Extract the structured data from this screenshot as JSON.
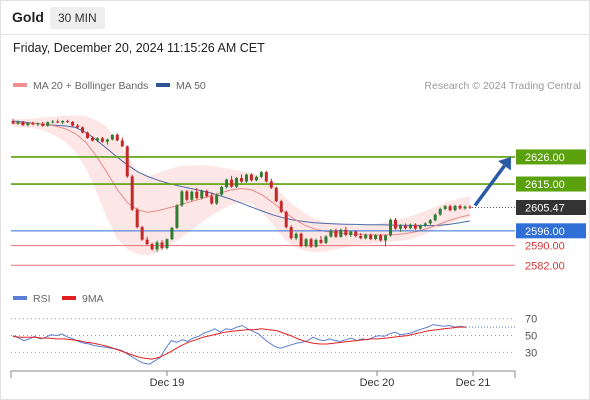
{
  "header": {
    "instrument": "Gold",
    "timeframe": "30 MIN"
  },
  "datetime": "Friday, December 20, 2024 11:15:26 AM CET",
  "legend": {
    "ma20": "MA 20 + Bollinger Bands",
    "ma50": "MA 50",
    "credit": "Research © 2024 Trading Central",
    "rsi": "RSI",
    "ma9": "9MA"
  },
  "colors": {
    "bull": "#2e7d32",
    "bear": "#c62828",
    "band": "#fde2e2",
    "ma20": "#e98a8a",
    "ma50": "#4a6aa8",
    "level_green": "#5aa10d",
    "level_blue": "#2f6fd6",
    "level_red": "#e8727a",
    "arrow": "#2a5aa6",
    "price_tag": "#333333",
    "rsi": "#5b7ed6",
    "rsi_ma": "#e02020"
  },
  "chart_data": [
    {
      "type": "candlestick",
      "ylim": [
        2574,
        2641
      ],
      "x_ticks": [
        "Dec 19",
        "Dec 20",
        "Dec 21"
      ],
      "last_price": "2605.47",
      "levels": [
        {
          "label": "2626.00",
          "value": 2626,
          "kind": "resistance"
        },
        {
          "label": "2615.00",
          "value": 2615,
          "kind": "resistance"
        },
        {
          "label": "2596.00",
          "value": 2596,
          "kind": "pivot"
        },
        {
          "label": "2590.00",
          "value": 2590,
          "kind": "support"
        },
        {
          "label": "2582.00",
          "value": 2582,
          "kind": "support"
        }
      ],
      "candles": [
        [
          2640.5,
          2641.5,
          2639.2,
          2639.6
        ],
        [
          2639.6,
          2640.8,
          2639.0,
          2640.2
        ],
        [
          2640.2,
          2640.6,
          2638.6,
          2638.9
        ],
        [
          2638.9,
          2640.1,
          2638.4,
          2639.7
        ],
        [
          2639.7,
          2640.3,
          2638.9,
          2639.2
        ],
        [
          2639.2,
          2640.0,
          2638.5,
          2639.6
        ],
        [
          2639.6,
          2640.2,
          2638.2,
          2638.6
        ],
        [
          2638.6,
          2640.4,
          2638.2,
          2640.1
        ],
        [
          2640.1,
          2641.0,
          2639.6,
          2640.4
        ],
        [
          2640.4,
          2641.2,
          2639.7,
          2640.0
        ],
        [
          2640.0,
          2640.9,
          2639.3,
          2640.6
        ],
        [
          2640.6,
          2641.1,
          2639.8,
          2640.2
        ],
        [
          2640.2,
          2640.6,
          2638.4,
          2638.7
        ],
        [
          2638.7,
          2639.4,
          2637.6,
          2638.0
        ],
        [
          2638.0,
          2638.4,
          2635.6,
          2635.9
        ],
        [
          2635.9,
          2636.3,
          2633.4,
          2633.7
        ],
        [
          2633.7,
          2634.4,
          2632.3,
          2632.6
        ],
        [
          2632.6,
          2634.0,
          2632.0,
          2633.6
        ],
        [
          2633.6,
          2634.1,
          2631.8,
          2632.2
        ],
        [
          2632.2,
          2633.5,
          2631.0,
          2633.1
        ],
        [
          2633.1,
          2635.2,
          2632.7,
          2635.0
        ],
        [
          2635.0,
          2635.6,
          2632.4,
          2632.7
        ],
        [
          2632.7,
          2633.9,
          2630.0,
          2630.3
        ],
        [
          2630.3,
          2630.7,
          2617.5,
          2618.1
        ],
        [
          2618.1,
          2618.8,
          2604.0,
          2604.6
        ],
        [
          2604.6,
          2605.4,
          2597.0,
          2597.5
        ],
        [
          2597.5,
          2598.0,
          2592.0,
          2592.4
        ],
        [
          2592.4,
          2593.6,
          2590.2,
          2590.6
        ],
        [
          2590.6,
          2591.2,
          2588.0,
          2588.5
        ],
        [
          2588.5,
          2592.0,
          2587.5,
          2591.3
        ],
        [
          2591.3,
          2592.2,
          2588.4,
          2589.0
        ],
        [
          2589.0,
          2592.9,
          2588.4,
          2592.6
        ],
        [
          2592.6,
          2597.6,
          2592.2,
          2597.2
        ],
        [
          2597.2,
          2606.8,
          2596.8,
          2606.3
        ],
        [
          2606.3,
          2612.6,
          2605.7,
          2612.0
        ],
        [
          2612.0,
          2612.6,
          2608.1,
          2608.6
        ],
        [
          2608.6,
          2612.4,
          2608.1,
          2611.9
        ],
        [
          2611.9,
          2613.4,
          2608.8,
          2609.3
        ],
        [
          2609.3,
          2612.8,
          2608.8,
          2612.2
        ],
        [
          2612.2,
          2612.7,
          2609.5,
          2610.0
        ],
        [
          2610.0,
          2611.6,
          2606.6,
          2607.1
        ],
        [
          2607.1,
          2611.2,
          2606.5,
          2610.7
        ],
        [
          2610.7,
          2614.3,
          2610.2,
          2613.8
        ],
        [
          2613.8,
          2617.2,
          2613.2,
          2616.8
        ],
        [
          2616.8,
          2618.3,
          2613.4,
          2613.9
        ],
        [
          2613.9,
          2617.9,
          2613.4,
          2617.4
        ],
        [
          2617.4,
          2618.9,
          2615.5,
          2616.0
        ],
        [
          2616.0,
          2619.3,
          2615.5,
          2618.8
        ],
        [
          2618.8,
          2619.4,
          2616.1,
          2616.5
        ],
        [
          2616.5,
          2618.4,
          2616.1,
          2617.9
        ],
        [
          2617.9,
          2620.3,
          2617.4,
          2619.8
        ],
        [
          2619.8,
          2620.4,
          2615.6,
          2616.1
        ],
        [
          2616.1,
          2617.2,
          2613.0,
          2613.5
        ],
        [
          2613.5,
          2614.0,
          2607.6,
          2608.0
        ],
        [
          2608.0,
          2608.6,
          2603.2,
          2603.7
        ],
        [
          2603.7,
          2604.2,
          2597.0,
          2597.5
        ],
        [
          2597.5,
          2598.2,
          2592.4,
          2593.0
        ],
        [
          2593.0,
          2595.4,
          2592.2,
          2594.8
        ],
        [
          2594.8,
          2595.3,
          2589.3,
          2589.8
        ],
        [
          2589.8,
          2593.1,
          2589.3,
          2592.6
        ],
        [
          2592.6,
          2593.2,
          2589.1,
          2589.6
        ],
        [
          2589.6,
          2592.8,
          2589.1,
          2592.3
        ],
        [
          2592.3,
          2593.9,
          2590.6,
          2591.1
        ],
        [
          2591.1,
          2594.2,
          2590.6,
          2593.7
        ],
        [
          2593.7,
          2596.7,
          2593.2,
          2596.2
        ],
        [
          2596.2,
          2596.8,
          2593.1,
          2593.6
        ],
        [
          2593.6,
          2596.9,
          2593.1,
          2596.4
        ],
        [
          2596.4,
          2597.6,
          2593.8,
          2594.3
        ],
        [
          2594.3,
          2596.2,
          2593.5,
          2595.7
        ],
        [
          2595.7,
          2596.3,
          2593.4,
          2593.9
        ],
        [
          2593.9,
          2595.1,
          2592.6,
          2593.0
        ],
        [
          2593.0,
          2594.9,
          2592.5,
          2594.4
        ],
        [
          2594.4,
          2594.9,
          2592.2,
          2592.7
        ],
        [
          2592.7,
          2594.7,
          2592.2,
          2594.2
        ],
        [
          2594.2,
          2594.7,
          2591.6,
          2592.1
        ],
        [
          2592.1,
          2594.6,
          2589.7,
          2594.1
        ],
        [
          2594.1,
          2601.0,
          2593.6,
          2600.5
        ],
        [
          2600.5,
          2601.2,
          2596.4,
          2596.9
        ],
        [
          2596.9,
          2598.7,
          2595.6,
          2598.1
        ],
        [
          2598.1,
          2599.0,
          2596.6,
          2597.1
        ],
        [
          2597.1,
          2599.0,
          2596.6,
          2598.5
        ],
        [
          2598.5,
          2599.1,
          2596.4,
          2596.9
        ],
        [
          2596.9,
          2598.6,
          2596.4,
          2598.1
        ],
        [
          2598.1,
          2599.5,
          2597.6,
          2599.0
        ],
        [
          2599.0,
          2600.8,
          2598.5,
          2600.3
        ],
        [
          2600.3,
          2603.1,
          2599.8,
          2602.6
        ],
        [
          2602.6,
          2605.4,
          2602.1,
          2604.9
        ],
        [
          2604.9,
          2606.5,
          2604.4,
          2606.0
        ],
        [
          2606.0,
          2606.6,
          2603.9,
          2604.4
        ],
        [
          2604.4,
          2606.6,
          2603.9,
          2606.1
        ],
        [
          2606.1,
          2606.7,
          2604.6,
          2605.1
        ],
        [
          2605.1,
          2606.3,
          2604.6,
          2605.8
        ],
        [
          2605.8,
          2606.4,
          2604.9,
          2605.47
        ]
      ],
      "ma20": [
        2639.8,
        2639.7,
        2639.6,
        2639.3,
        2638.6,
        2637.5,
        2635.5,
        2632.0,
        2626.5,
        2620.0,
        2613.0,
        2607.5,
        2604.5,
        2603.5,
        2604.2,
        2605.3,
        2606.5,
        2607.7,
        2608.9,
        2610.2,
        2611.4,
        2612.6,
        2613.2,
        2612.6,
        2610.5,
        2607.5,
        2604.2,
        2601.0,
        2598.5,
        2596.8,
        2595.8,
        2595.3,
        2594.9,
        2594.6,
        2594.4,
        2594.3,
        2594.3,
        2594.5,
        2595.0,
        2595.8,
        2597.1,
        2598.6,
        2600.2,
        2601.5,
        2602.5
      ],
      "ma50": [
        2640.6,
        2640.2,
        2639.7,
        2639.2,
        2638.9,
        2638.6,
        2638.0,
        2636.0,
        2633.0,
        2629.5,
        2626.0,
        2622.8,
        2620.0,
        2618.0,
        2616.5,
        2615.2,
        2614.2,
        2613.3,
        2612.4,
        2611.4,
        2610.2,
        2608.8,
        2607.2,
        2605.6,
        2604.0,
        2602.5,
        2601.3,
        2600.4,
        2599.8,
        2599.3,
        2599.0,
        2598.8,
        2598.7,
        2598.6,
        2598.5,
        2598.5,
        2598.4,
        2598.3,
        2598.2,
        2598.2,
        2598.1,
        2598.2,
        2598.6,
        2599.3,
        2600.0
      ],
      "bb_upper": [
        2641.3,
        2641.4,
        2641.6,
        2642.0,
        2642.4,
        2642.8,
        2642.9,
        2642.5,
        2641.0,
        2638.2,
        2633.0,
        2626.5,
        2620.0,
        2618.0,
        2619.5,
        2621.0,
        2622.2,
        2622.5,
        2622.6,
        2622.4,
        2621.8,
        2621.0,
        2620.3,
        2619.5,
        2618.0,
        2614.5,
        2610.5,
        2606.5,
        2603.5,
        2601.0,
        2599.5,
        2599.0,
        2598.6,
        2598.1,
        2598.2,
        2598.8,
        2599.5,
        2600.5,
        2601.6,
        2603.0,
        2604.6,
        2606.3,
        2608.0,
        2609.2,
        2610.0
      ],
      "bb_lower": [
        2638.2,
        2638.0,
        2637.6,
        2636.6,
        2634.8,
        2632.2,
        2628.1,
        2621.5,
        2612.0,
        2601.8,
        2593.0,
        2588.5,
        2586.5,
        2586.0,
        2587.4,
        2589.8,
        2592.6,
        2595.6,
        2598.8,
        2601.9,
        2604.4,
        2606.5,
        2607.6,
        2607.0,
        2603.6,
        2598.5,
        2593.2,
        2589.7,
        2588.0,
        2587.3,
        2587.5,
        2588.4,
        2589.2,
        2590.0,
        2590.6,
        2591.0,
        2591.4,
        2591.8,
        2592.4,
        2593.5,
        2595.2,
        2597.0,
        2598.8,
        2600.6,
        2601.4
      ]
    },
    {
      "type": "line",
      "title": "RSI",
      "ylim": [
        15,
        78
      ],
      "y_ticks": [
        "70",
        "50",
        "30"
      ],
      "series": [
        {
          "name": "RSI",
          "values": [
            50,
            47,
            44,
            46,
            49,
            46,
            48,
            51,
            50,
            52,
            48,
            46,
            43,
            41,
            40,
            38,
            37,
            36,
            35,
            34,
            32,
            28,
            24,
            20,
            17,
            16,
            20,
            24,
            35,
            44,
            42,
            45,
            43,
            47,
            49,
            53,
            55,
            58,
            54,
            58,
            57,
            60,
            62,
            58,
            55,
            52,
            46,
            41,
            37,
            35,
            37,
            39,
            41,
            42,
            44,
            48,
            45,
            44,
            46,
            44,
            43,
            45,
            47,
            44,
            46,
            45,
            48,
            50,
            49,
            52,
            54,
            51,
            52,
            53,
            56,
            58,
            60,
            63,
            62,
            61,
            62,
            60,
            61,
            60
          ]
        },
        {
          "name": "9MA",
          "values": [
            49,
            48,
            48,
            48,
            47,
            47,
            46,
            46,
            45,
            44,
            42,
            41,
            39,
            37,
            34,
            31,
            28,
            25,
            23,
            22,
            24,
            28,
            33,
            38,
            42,
            45,
            48,
            50,
            52,
            54,
            55,
            56,
            57,
            57,
            58,
            57,
            56,
            53,
            50,
            46,
            43,
            41,
            40,
            40,
            41,
            42,
            43,
            44,
            45,
            46,
            46,
            47,
            48,
            49,
            50,
            52,
            54,
            56,
            57,
            58,
            59,
            60,
            60
          ]
        }
      ]
    }
  ]
}
